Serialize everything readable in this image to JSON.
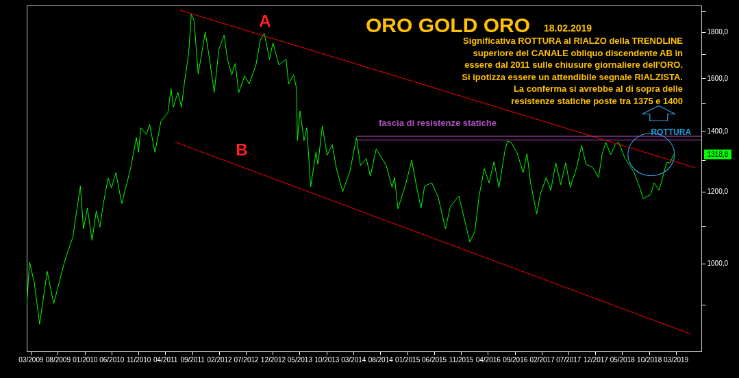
{
  "chart_data": {
    "type": "line",
    "title": "ORO  GOLD  ORO",
    "subtitle": "18.02.2019",
    "xlim": [
      "2009-02-06",
      "2019-07-24"
    ],
    "xticks": [
      {
        "value": "2009-03-01",
        "label": "03/2009"
      },
      {
        "value": "2009-08-01",
        "label": "08/2009"
      },
      {
        "value": "2010-01-01",
        "label": "01/2010"
      },
      {
        "value": "2010-06-01",
        "label": "06/2010"
      },
      {
        "value": "2010-11-01",
        "label": "11/2010"
      },
      {
        "value": "2011-04-01",
        "label": "04/2011"
      },
      {
        "value": "2011-09-01",
        "label": "09/2011"
      },
      {
        "value": "2012-02-01",
        "label": "02/2012"
      },
      {
        "value": "2012-07-01",
        "label": "07/2012"
      },
      {
        "value": "2012-12-01",
        "label": "12/2012"
      },
      {
        "value": "2013-05-01",
        "label": "05/2013"
      },
      {
        "value": "2013-10-01",
        "label": "10/2013"
      },
      {
        "value": "2014-03-01",
        "label": "03/2014"
      },
      {
        "value": "2014-08-01",
        "label": "08/2014"
      },
      {
        "value": "2015-01-01",
        "label": "01/2015"
      },
      {
        "value": "2015-06-01",
        "label": "06/2015"
      },
      {
        "value": "2015-11-01",
        "label": "11/2015"
      },
      {
        "value": "2016-04-01",
        "label": "04/2016"
      },
      {
        "value": "2016-09-01",
        "label": "09/2016"
      },
      {
        "value": "2017-02-01",
        "label": "02/2017"
      },
      {
        "value": "2017-07-01",
        "label": "07/2017"
      },
      {
        "value": "2017-12-01",
        "label": "12/2017"
      },
      {
        "value": "2018-05-01",
        "label": "05/2018"
      },
      {
        "value": "2018-10-01",
        "label": "10/2018"
      },
      {
        "value": "2019-03-01",
        "label": "03/2019"
      }
    ],
    "ylim": [
      800,
      1925
    ],
    "log": true,
    "yticks": [
      {
        "value": 900,
        "label": null
      },
      {
        "value": 1000,
        "label": "1000,0"
      },
      {
        "value": 1100,
        "label": null
      },
      {
        "value": 1200,
        "label": "1200,0"
      },
      {
        "value": 1300,
        "label": null
      },
      {
        "value": 1400,
        "label": "1400,0"
      },
      {
        "value": 1500,
        "label": null
      },
      {
        "value": 1600,
        "label": "1600,0"
      },
      {
        "value": 1700,
        "label": null
      },
      {
        "value": 1800,
        "label": "1800,0"
      },
      {
        "value": 1900,
        "label": null
      }
    ],
    "series": [
      {
        "color": "#00ff00",
        "x": [
          "2009-02-06",
          "2009-02-22",
          "2009-03-21",
          "2009-04-20",
          "2009-06-02",
          "2009-07-09",
          "2009-09-04",
          "2009-09-19",
          "2009-10-25",
          "2009-12-07",
          "2009-12-24",
          "2010-01-16",
          "2010-02-11",
          "2010-03-07",
          "2010-03-27",
          "2010-04-16",
          "2010-05-13",
          "2010-06-01",
          "2010-06-26",
          "2010-07-29",
          "2010-09-17",
          "2010-10-20",
          "2010-11-01",
          "2010-11-14",
          "2010-12-15",
          "2011-01-03",
          "2011-02-02",
          "2011-03-08",
          "2011-04-16",
          "2011-05-04",
          "2011-05-17",
          "2011-06-12",
          "2011-07-02",
          "2011-07-21",
          "2011-08-12",
          "2011-08-27",
          "2011-09-12",
          "2011-10-05",
          "2011-11-14",
          "2011-12-02",
          "2012-01-04",
          "2012-01-30",
          "2012-02-29",
          "2012-03-19",
          "2012-04-12",
          "2012-05-02",
          "2012-05-21",
          "2012-06-24",
          "2012-07-19",
          "2012-08-27",
          "2012-09-21",
          "2012-10-13",
          "2012-11-12",
          "2012-12-01",
          "2013-01-04",
          "2013-02-14",
          "2013-02-28",
          "2013-03-28",
          "2013-04-14",
          "2013-04-19",
          "2013-05-04",
          "2013-05-26",
          "2013-06-11",
          "2013-07-03",
          "2013-08-02",
          "2013-08-13",
          "2013-09-07",
          "2013-10-04",
          "2013-11-02",
          "2013-11-26",
          "2013-12-31",
          "2014-02-11",
          "2014-03-19",
          "2014-04-11",
          "2014-05-14",
          "2014-06-06",
          "2014-07-09",
          "2014-09-04",
          "2014-10-07",
          "2014-10-21",
          "2014-11-09",
          "2014-12-22",
          "2015-01-26",
          "2015-02-28",
          "2015-03-20",
          "2015-04-09",
          "2015-05-20",
          "2015-06-25",
          "2015-08-05",
          "2015-09-02",
          "2015-10-20",
          "2015-11-10",
          "2015-12-21",
          "2016-01-18",
          "2016-02-13",
          "2016-03-12",
          "2016-04-08",
          "2016-05-06",
          "2016-06-03",
          "2016-07-06",
          "2016-07-21",
          "2016-08-11",
          "2016-09-15",
          "2016-10-18",
          "2016-11-09",
          "2016-11-29",
          "2017-01-03",
          "2017-01-23",
          "2017-02-26",
          "2017-03-24",
          "2017-04-21",
          "2017-05-19",
          "2017-06-16",
          "2017-07-12",
          "2017-08-17",
          "2017-09-14",
          "2017-10-09",
          "2017-11-15",
          "2017-12-19",
          "2018-01-09",
          "2018-01-29",
          "2018-02-26",
          "2018-03-24",
          "2018-04-12",
          "2018-05-18",
          "2018-07-05",
          "2018-08-09",
          "2018-08-29",
          "2018-10-10",
          "2018-10-30",
          "2018-11-27",
          "2018-12-17",
          "2019-01-08",
          "2019-01-28",
          "2019-02-18"
        ],
        "values": [
          899,
          1003,
          952,
          857,
          980,
          903,
          997,
          1020,
          1069,
          1217,
          1092,
          1151,
          1060,
          1143,
          1096,
          1164,
          1242,
          1211,
          1259,
          1164,
          1272,
          1377,
          1326,
          1411,
          1387,
          1423,
          1326,
          1434,
          1466,
          1558,
          1487,
          1544,
          1487,
          1593,
          1704,
          1883,
          1851,
          1617,
          1799,
          1711,
          1544,
          1721,
          1786,
          1679,
          1614,
          1662,
          1542,
          1610,
          1577,
          1655,
          1764,
          1794,
          1679,
          1751,
          1655,
          1679,
          1577,
          1614,
          1560,
          1366,
          1473,
          1366,
          1411,
          1215,
          1326,
          1286,
          1418,
          1316,
          1352,
          1272,
          1200,
          1265,
          1377,
          1282,
          1305,
          1248,
          1337,
          1282,
          1213,
          1244,
          1149,
          1221,
          1299,
          1200,
          1151,
          1217,
          1227,
          1183,
          1092,
          1155,
          1187,
          1141,
          1056,
          1084,
          1191,
          1272,
          1227,
          1295,
          1213,
          1328,
          1364,
          1360,
          1322,
          1259,
          1322,
          1227,
          1134,
          1191,
          1244,
          1204,
          1291,
          1221,
          1291,
          1213,
          1276,
          1349,
          1286,
          1276,
          1244,
          1322,
          1360,
          1318,
          1354,
          1360,
          1305,
          1263,
          1213,
          1179,
          1191,
          1227,
          1204,
          1244,
          1291,
          1291,
          1318.8
        ]
      },
      {
        "type": "line",
        "color": "#ff0000",
        "x": [
          "2011-06-21",
          "2019-06-20"
        ],
        "values": [
          1903,
          1275
        ]
      },
      {
        "type": "line",
        "color": "#ff0000",
        "x": [
          "2011-05-26",
          "2019-05-24"
        ],
        "values": [
          1361,
          836
        ]
      },
      {
        "type": "line",
        "color": "#c050c8",
        "x": [
          "2014-03-19",
          "2019-07-24"
        ],
        "values": [
          1381,
          1381
        ]
      },
      {
        "type": "line",
        "color": "#c050c8",
        "x": [
          "2014-03-19",
          "2019-07-24"
        ],
        "values": [
          1368,
          1368
        ]
      }
    ],
    "annotations": [
      "Significativa ROTTURA al RIALZO della TRENDLINE\nsuperiore del  CANALE  obliquo  discendente AB  in\nessere  dal 2011 sulle chiusure giornaliere dell'ORO.\nSi ipotizza essere un attendibile segnale RIALZISTA.\nLa conferma si avrebbe al di sopra delle\nresistenze statiche poste tra 1375 e 1400",
      "A",
      "B",
      "fascia di resistenze statiche",
      "ROTTURA",
      "1318,8"
    ]
  }
}
